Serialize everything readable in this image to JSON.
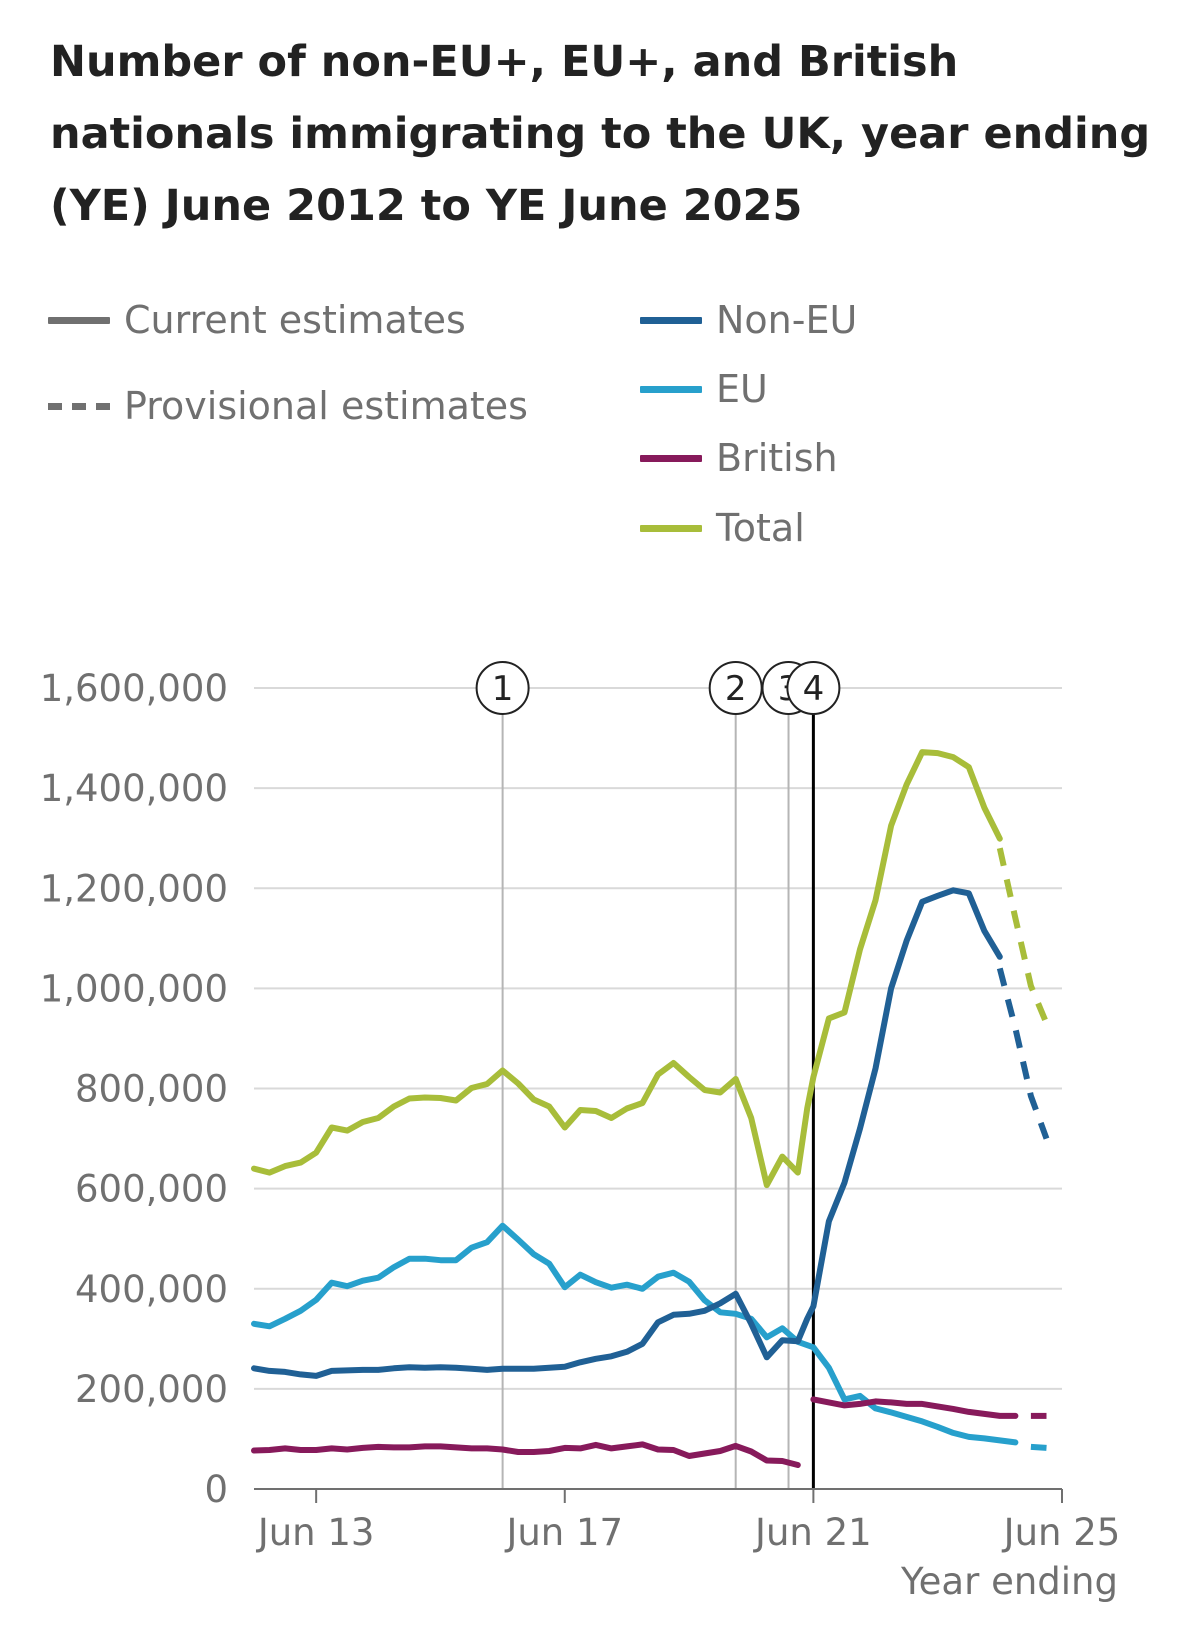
{
  "title": "Number of non-EU+, EU+, and British nationals immigrating to the UK, year ending (YE) June 2012 to YE June 2025",
  "legend": {
    "estimate_types": [
      {
        "label": "Current estimates",
        "style": "solid"
      },
      {
        "label": "Provisional estimates",
        "style": "dashed"
      }
    ],
    "series": [
      {
        "label": "Non-EU",
        "color": "#206095"
      },
      {
        "label": "EU",
        "color": "#27a0cc"
      },
      {
        "label": "British",
        "color": "#871a5b"
      },
      {
        "label": "Total",
        "color": "#a8bd3a"
      }
    ]
  },
  "chart_data": {
    "type": "line",
    "title": "Number of non-EU+, EU+, and British nationals immigrating to the UK, year ending (YE) June 2012 to YE June 2025",
    "xlabel": "Year ending",
    "ylabel": "",
    "x_ticks": [
      "Jun 13",
      "Jun 17",
      "Jun 21",
      "Jun 25"
    ],
    "x_tick_years": [
      2013,
      2017,
      2021,
      2025
    ],
    "xlim": [
      2012.0,
      2025.0
    ],
    "y_ticks": [
      "0",
      "200,000",
      "400,000",
      "600,000",
      "800,000",
      "1,000,000",
      "1,200,000",
      "1,400,000",
      "1,600,000"
    ],
    "y_tick_values": [
      0,
      200000,
      400000,
      600000,
      800000,
      1000000,
      1200000,
      1400000,
      1600000
    ],
    "ylim": [
      0,
      1600000
    ],
    "grid": true,
    "markers": [
      {
        "label": "1",
        "year": 2016.0
      },
      {
        "label": "2",
        "year": 2019.75
      },
      {
        "label": "3",
        "year": 2020.6
      },
      {
        "label": "4",
        "year": 2021.0
      }
    ],
    "series": [
      {
        "name": "Non-EU",
        "color": "#206095",
        "current": [
          [
            2012.0,
            241000
          ],
          [
            2012.25,
            236000
          ],
          [
            2012.5,
            234000
          ],
          [
            2012.75,
            229000
          ],
          [
            2013.0,
            226000
          ],
          [
            2013.25,
            236000
          ],
          [
            2013.5,
            237000
          ],
          [
            2013.75,
            238000
          ],
          [
            2014.0,
            238000
          ],
          [
            2014.25,
            241000
          ],
          [
            2014.5,
            243000
          ],
          [
            2014.75,
            242000
          ],
          [
            2015.0,
            243000
          ],
          [
            2015.25,
            242000
          ],
          [
            2015.5,
            240000
          ],
          [
            2015.75,
            238000
          ],
          [
            2016.0,
            240000
          ],
          [
            2016.25,
            240000
          ],
          [
            2016.5,
            240000
          ],
          [
            2016.75,
            242000
          ],
          [
            2017.0,
            244000
          ],
          [
            2017.25,
            253000
          ],
          [
            2017.5,
            260000
          ],
          [
            2017.75,
            265000
          ],
          [
            2018.0,
            274000
          ],
          [
            2018.25,
            290000
          ],
          [
            2018.5,
            333000
          ],
          [
            2018.75,
            348000
          ],
          [
            2019.0,
            350000
          ],
          [
            2019.25,
            356000
          ],
          [
            2019.5,
            371000
          ],
          [
            2019.75,
            390000
          ],
          [
            2020.0,
            330000
          ],
          [
            2020.25,
            263000
          ],
          [
            2020.5,
            297000
          ],
          [
            2020.75,
            295000
          ],
          [
            2020.9,
            340000
          ],
          [
            2021.0,
            365000
          ],
          [
            2021.25,
            535000
          ],
          [
            2021.5,
            612000
          ],
          [
            2021.75,
            720000
          ],
          [
            2022.0,
            840000
          ],
          [
            2022.25,
            1000000
          ],
          [
            2022.5,
            1095000
          ],
          [
            2022.75,
            1173000
          ],
          [
            2023.0,
            1185000
          ],
          [
            2023.25,
            1196000
          ],
          [
            2023.5,
            1190000
          ],
          [
            2023.75,
            1115000
          ],
          [
            2024.0,
            1063000
          ]
        ],
        "provisional": [
          [
            2024.0,
            1040000
          ],
          [
            2024.25,
            920000
          ],
          [
            2024.5,
            785000
          ],
          [
            2024.75,
            700000
          ]
        ]
      },
      {
        "name": "EU",
        "color": "#27a0cc",
        "current": [
          [
            2012.0,
            330000
          ],
          [
            2012.25,
            325000
          ],
          [
            2012.5,
            340000
          ],
          [
            2012.75,
            356000
          ],
          [
            2013.0,
            378000
          ],
          [
            2013.25,
            412000
          ],
          [
            2013.5,
            405000
          ],
          [
            2013.75,
            416000
          ],
          [
            2014.0,
            422000
          ],
          [
            2014.25,
            443000
          ],
          [
            2014.5,
            460000
          ],
          [
            2014.75,
            460000
          ],
          [
            2015.0,
            457000
          ],
          [
            2015.25,
            457000
          ],
          [
            2015.5,
            482000
          ],
          [
            2015.75,
            493000
          ],
          [
            2016.0,
            526000
          ],
          [
            2016.25,
            498000
          ],
          [
            2016.5,
            469000
          ],
          [
            2016.75,
            450000
          ],
          [
            2017.0,
            403000
          ],
          [
            2017.25,
            428000
          ],
          [
            2017.5,
            413000
          ],
          [
            2017.75,
            402000
          ],
          [
            2018.0,
            408000
          ],
          [
            2018.25,
            400000
          ],
          [
            2018.5,
            424000
          ],
          [
            2018.75,
            432000
          ],
          [
            2019.0,
            414000
          ],
          [
            2019.25,
            377000
          ],
          [
            2019.5,
            353000
          ],
          [
            2019.75,
            350000
          ],
          [
            2020.0,
            340000
          ],
          [
            2020.25,
            303000
          ],
          [
            2020.5,
            321000
          ],
          [
            2020.75,
            294000
          ],
          [
            2021.0,
            283000
          ],
          [
            2021.25,
            242000
          ],
          [
            2021.5,
            179000
          ],
          [
            2021.75,
            186000
          ],
          [
            2022.0,
            161000
          ],
          [
            2022.25,
            153000
          ],
          [
            2022.5,
            144000
          ],
          [
            2022.75,
            135000
          ],
          [
            2023.0,
            124000
          ],
          [
            2023.25,
            112000
          ],
          [
            2023.5,
            104000
          ],
          [
            2023.75,
            101000
          ],
          [
            2024.0,
            97000
          ],
          [
            2024.25,
            93000
          ]
        ],
        "provisional": [
          [
            2024.5,
            84000
          ],
          [
            2024.75,
            82000
          ]
        ]
      },
      {
        "name": "British",
        "color": "#871a5b",
        "current_pre": [
          [
            2012.0,
            77000
          ],
          [
            2012.25,
            78000
          ],
          [
            2012.5,
            81000
          ],
          [
            2012.75,
            78000
          ],
          [
            2013.0,
            78000
          ],
          [
            2013.25,
            81000
          ],
          [
            2013.5,
            79000
          ],
          [
            2013.75,
            82000
          ],
          [
            2014.0,
            84000
          ],
          [
            2014.25,
            83000
          ],
          [
            2014.5,
            83000
          ],
          [
            2014.75,
            85000
          ],
          [
            2015.0,
            85000
          ],
          [
            2015.25,
            83000
          ],
          [
            2015.5,
            81000
          ],
          [
            2015.75,
            81000
          ],
          [
            2016.0,
            79000
          ],
          [
            2016.25,
            74000
          ],
          [
            2016.5,
            74000
          ],
          [
            2016.75,
            76000
          ],
          [
            2017.0,
            82000
          ],
          [
            2017.25,
            81000
          ],
          [
            2017.5,
            88000
          ],
          [
            2017.75,
            81000
          ],
          [
            2018.0,
            85000
          ],
          [
            2018.25,
            89000
          ],
          [
            2018.5,
            79000
          ],
          [
            2018.75,
            78000
          ],
          [
            2019.0,
            66000
          ],
          [
            2019.25,
            71000
          ],
          [
            2019.5,
            76000
          ],
          [
            2019.75,
            86000
          ],
          [
            2020.0,
            75000
          ],
          [
            2020.25,
            57000
          ],
          [
            2020.5,
            56000
          ],
          [
            2020.75,
            48000
          ]
        ],
        "current": [
          [
            2021.0,
            179000
          ],
          [
            2021.25,
            173000
          ],
          [
            2021.5,
            167000
          ],
          [
            2021.75,
            170000
          ],
          [
            2022.0,
            175000
          ],
          [
            2022.25,
            173000
          ],
          [
            2022.5,
            170000
          ],
          [
            2022.75,
            170000
          ],
          [
            2023.0,
            165000
          ],
          [
            2023.25,
            160000
          ],
          [
            2023.5,
            154000
          ],
          [
            2023.75,
            150000
          ],
          [
            2024.0,
            146000
          ],
          [
            2024.25,
            146000
          ]
        ],
        "provisional": [
          [
            2024.5,
            146000
          ],
          [
            2024.75,
            146000
          ]
        ]
      },
      {
        "name": "Total",
        "color": "#a8bd3a",
        "current": [
          [
            2012.0,
            640000
          ],
          [
            2012.25,
            632000
          ],
          [
            2012.5,
            645000
          ],
          [
            2012.75,
            652000
          ],
          [
            2013.0,
            672000
          ],
          [
            2013.25,
            722000
          ],
          [
            2013.5,
            716000
          ],
          [
            2013.75,
            733000
          ],
          [
            2014.0,
            741000
          ],
          [
            2014.25,
            764000
          ],
          [
            2014.5,
            780000
          ],
          [
            2014.75,
            782000
          ],
          [
            2015.0,
            781000
          ],
          [
            2015.25,
            776000
          ],
          [
            2015.5,
            801000
          ],
          [
            2015.75,
            809000
          ],
          [
            2016.0,
            836000
          ],
          [
            2016.25,
            810000
          ],
          [
            2016.5,
            778000
          ],
          [
            2016.75,
            764000
          ],
          [
            2017.0,
            722000
          ],
          [
            2017.25,
            757000
          ],
          [
            2017.5,
            755000
          ],
          [
            2017.75,
            741000
          ],
          [
            2018.0,
            760000
          ],
          [
            2018.25,
            771000
          ],
          [
            2018.5,
            828000
          ],
          [
            2018.75,
            851000
          ],
          [
            2019.0,
            823000
          ],
          [
            2019.25,
            797000
          ],
          [
            2019.5,
            792000
          ],
          [
            2019.75,
            819000
          ],
          [
            2020.0,
            741000
          ],
          [
            2020.25,
            607000
          ],
          [
            2020.5,
            664000
          ],
          [
            2020.75,
            632000
          ],
          [
            2020.9,
            760000
          ],
          [
            2021.0,
            823000
          ],
          [
            2021.25,
            940000
          ],
          [
            2021.5,
            952000
          ],
          [
            2021.75,
            1078000
          ],
          [
            2022.0,
            1176000
          ],
          [
            2022.25,
            1325000
          ],
          [
            2022.5,
            1407000
          ],
          [
            2022.75,
            1472000
          ],
          [
            2023.0,
            1470000
          ],
          [
            2023.25,
            1462000
          ],
          [
            2023.5,
            1442000
          ],
          [
            2023.75,
            1361000
          ],
          [
            2024.0,
            1299000
          ]
        ],
        "provisional": [
          [
            2024.0,
            1280000
          ],
          [
            2024.25,
            1140000
          ],
          [
            2024.5,
            1005000
          ],
          [
            2024.75,
            930000
          ]
        ]
      }
    ]
  }
}
